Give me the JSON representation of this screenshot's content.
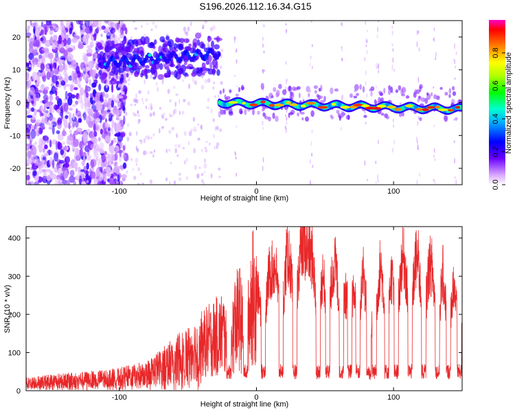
{
  "figure": {
    "title": "S196.2026.112.16.34.G15"
  },
  "colors": {
    "snr_line": "#e8282a",
    "background": "#ffffff",
    "axis": "#000000"
  },
  "chart_data": [
    {
      "type": "heatmap",
      "name": "spectrogram",
      "xlabel": "Height of straight line (km)",
      "ylabel": "Frequency (Hz)",
      "xlim": [
        -168,
        150
      ],
      "ylim": [
        -25,
        25
      ],
      "xticks": [
        -100,
        0,
        100
      ],
      "yticks": [
        -20,
        -10,
        0,
        10,
        20
      ],
      "colorbar": {
        "label": "Normalized spectral amplitude",
        "range": [
          0,
          1
        ],
        "ticks": [
          "0.0",
          "0.2",
          "0.4",
          "0.6",
          "0.8"
        ],
        "tick_values": [
          0,
          0.2,
          0.4,
          0.6,
          0.8
        ]
      },
      "features": [
        {
          "segment": "scattered noise",
          "x_range": [
            -168,
            -105
          ],
          "freq_range": [
            -25,
            25
          ],
          "amplitude": "low"
        },
        {
          "segment": "strong tone",
          "x_range": [
            -115,
            -27
          ],
          "freq_start": 12,
          "freq_end": 15,
          "amplitude": "medium"
        },
        {
          "segment": "strong tone",
          "x_range": [
            -27,
            150
          ],
          "freq_start": 0,
          "freq_end": -2,
          "amplitude": "high"
        }
      ]
    },
    {
      "type": "line",
      "name": "snr",
      "xlabel": "Height of straight line (km)",
      "ylabel": "SNR (10 * v/v)",
      "xlim": [
        -168,
        150
      ],
      "ylim": [
        0,
        430
      ],
      "xticks": [
        -100,
        0,
        100
      ],
      "yticks": [
        0,
        100,
        200,
        300,
        400
      ],
      "envelope": {
        "x": [
          -168,
          -150,
          -120,
          -100,
          -80,
          -60,
          -45,
          -30,
          -20,
          -10,
          0,
          10,
          20,
          30,
          35,
          40,
          50,
          60,
          70,
          80,
          90,
          100,
          110,
          120,
          130,
          140,
          150
        ],
        "y": [
          20,
          25,
          30,
          35,
          45,
          80,
          110,
          140,
          160,
          200,
          260,
          310,
          345,
          370,
          380,
          350,
          340,
          320,
          330,
          310,
          320,
          340,
          345,
          340,
          320,
          300,
          270
        ]
      }
    }
  ]
}
